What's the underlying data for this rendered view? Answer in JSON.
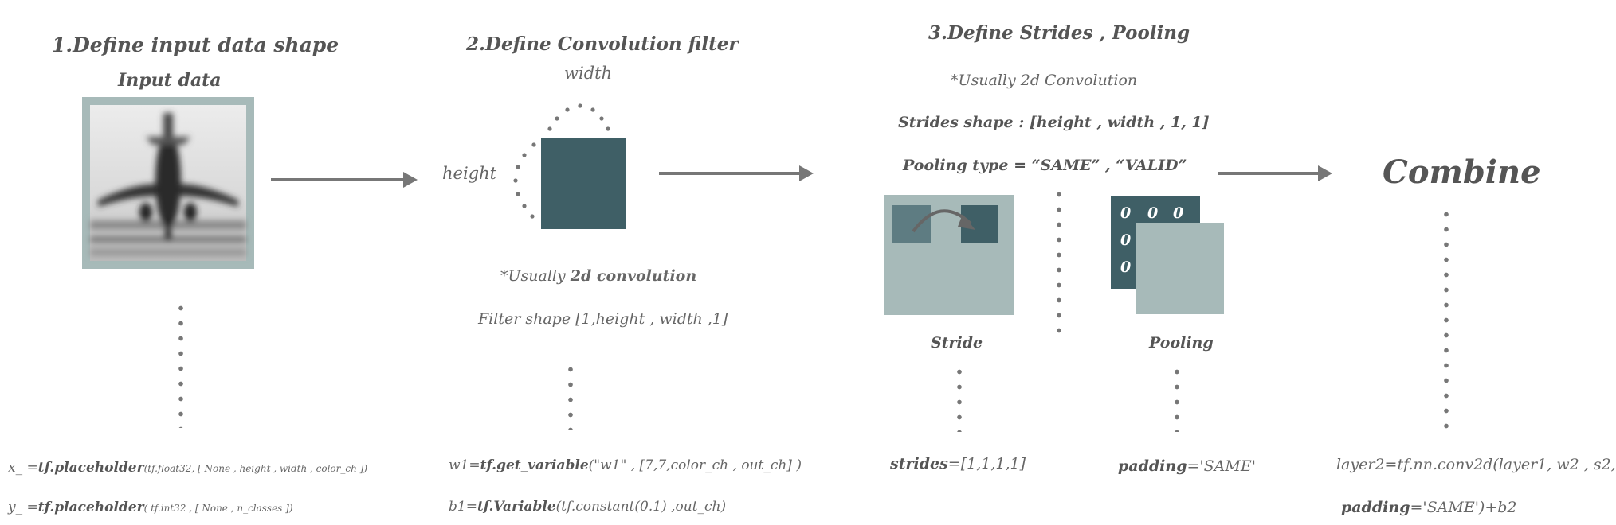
{
  "colors": {
    "dark_teal": "#3f5f66",
    "light_teal": "#a7bab9",
    "text_gray": "#555555",
    "arrow_gray": "#777777"
  },
  "step1": {
    "title": "1.Define input data shape",
    "subtitle": "Input data",
    "code_x_prefix": "x_ =",
    "code_x_func": "tf.placeholder",
    "code_x_args": "(tf.float32, [ None , height , width , color_ch ])",
    "code_y_prefix": "y_ =",
    "code_y_func": "tf.placeholder",
    "code_y_args": "( tf.int32 , [ None , n_classes ])"
  },
  "step2": {
    "title": "2.Define Convolution filter",
    "width_label": "width",
    "height_label": "height",
    "note_prefix": "*Usually ",
    "note_bold": "2d convolution",
    "filter_shape": "Filter shape [1,height , width ,1]",
    "code_w_prefix": "w1=",
    "code_w_func": "tf.get_variable",
    "code_w_args": "(\"w1\" , [7,7,color_ch , out_ch] )",
    "code_b_prefix": "b1=",
    "code_b_func": "tf.Variable",
    "code_b_args": "(tf.constant(0.1) ,out_ch)"
  },
  "step3": {
    "title": "3.Define Strides , Pooling",
    "note": "*Usually 2d Convolution",
    "strides_shape": "Strides shape : [height , width , 1, 1]",
    "pooling_type": "Pooling type = “SAME” , “VALID”",
    "stride_label": "Stride",
    "pooling_label": "Pooling",
    "zeros": [
      "0",
      "0",
      "0",
      "0",
      "0"
    ],
    "strides_code_key": "strides",
    "strides_code_val": "=[1,1,1,1]",
    "padding_code_key": "padding",
    "padding_code_val": "='SAME'"
  },
  "step4": {
    "title": "Combine",
    "code_line1": "layer2=tf.nn.conv2d(layer1, w2 , s2,",
    "code_line2_key": "padding",
    "code_line2_val": "='SAME')+b2"
  }
}
